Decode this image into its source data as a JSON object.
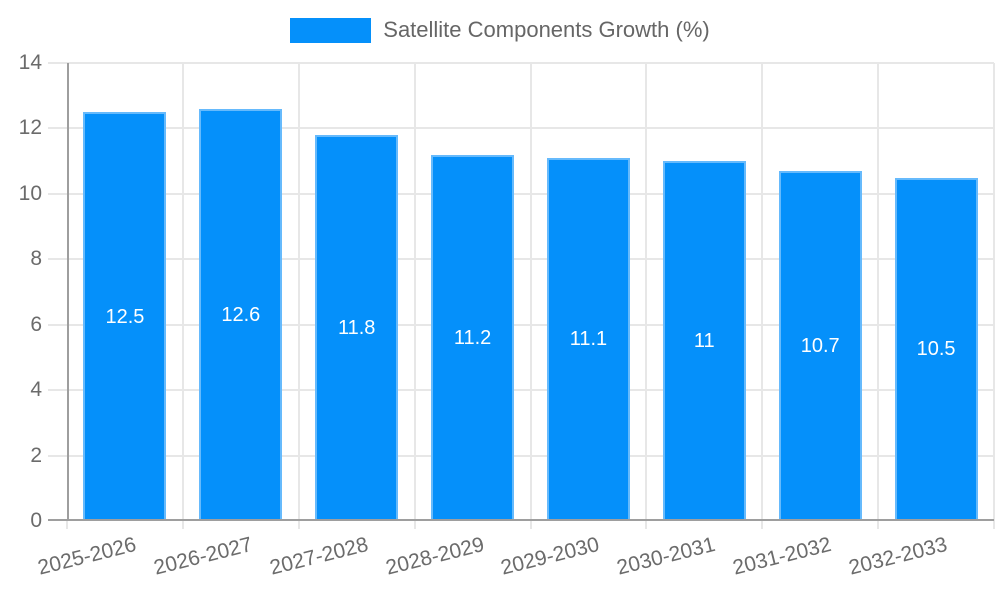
{
  "chart_data": {
    "type": "bar",
    "title": "Satellite Components Growth (%)",
    "legend_position": "top",
    "categories": [
      "2025-2026",
      "2026-2027",
      "2027-2028",
      "2028-2029",
      "2029-2030",
      "2030-2031",
      "2031-2032",
      "2032-2033"
    ],
    "values": [
      12.5,
      12.6,
      11.8,
      11.2,
      11.1,
      11,
      10.7,
      10.5
    ],
    "value_labels": [
      "12.5",
      "12.6",
      "11.8",
      "11.2",
      "11.1",
      "11",
      "10.7",
      "10.5"
    ],
    "xlabel": "",
    "ylabel": "",
    "ylim": [
      0,
      14
    ],
    "yticks": [
      0,
      2,
      4,
      6,
      8,
      10,
      12,
      14
    ],
    "grid": true,
    "colors": {
      "bar_fill": "#0590FA",
      "bar_edge": "#66BAFC",
      "grid_line": "#E7E7E7",
      "axis_line": "#9E9E9E",
      "tick_text": "#6B6B6B",
      "legend_text": "#666666",
      "value_text": "#FFFFFF",
      "background": "#FFFFFF"
    }
  }
}
